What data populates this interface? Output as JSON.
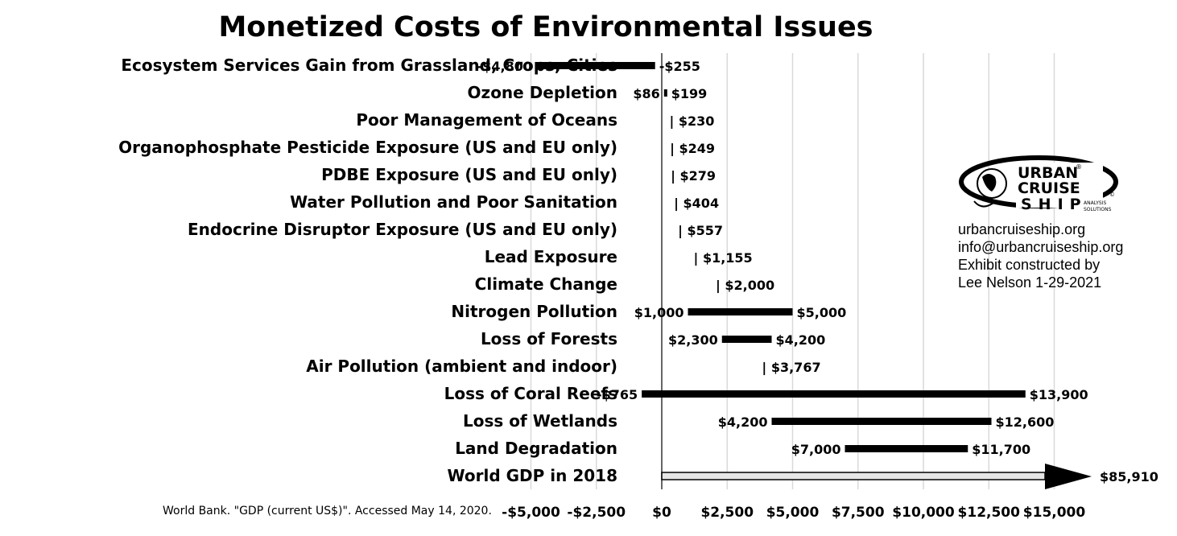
{
  "chart_data": {
    "type": "bar",
    "title": "Monetized Costs of Environmental Issues",
    "xlabel": "",
    "ylabel": "",
    "xlim": [
      -6000,
      15900
    ],
    "grid": true,
    "x_ticks": [
      -5000,
      -2500,
      0,
      2500,
      5000,
      7500,
      10000,
      12500,
      15000
    ],
    "x_tick_labels": [
      "-$5,000",
      "-$2,500",
      "$0",
      "$2,500",
      "$5,000",
      "$7,500",
      "$10,000",
      "$12,500",
      "$15,000"
    ],
    "categories": [
      "Ecosystem Services Gain from Grassland, Crops, Cities",
      "Ozone Depletion",
      "Poor Management of Oceans",
      "Organophosphate Pesticide Exposure (US and EU only)",
      "PDBE Exposure (US and EU only)",
      "Water Pollution and Poor Sanitation",
      "Endocrine Disruptor Exposure (US and EU only)",
      "Lead Exposure",
      "Climate Change",
      "Nitrogen Pollution",
      "Loss of Forests",
      "Air Pollution (ambient and indoor)",
      "Loss of Coral Reefs",
      "Loss of Wetlands",
      "Land Degradation",
      "World GDP in 2018"
    ],
    "ranges": [
      {
        "low": -4800,
        "high": -255,
        "low_label": "-$4,800",
        "high_label": "-$255"
      },
      {
        "low": 86,
        "high": 199,
        "low_label": "$86",
        "high_label": "$199"
      },
      {
        "low": 230,
        "high": 230,
        "low_label": "",
        "high_label": "| $230"
      },
      {
        "low": 249,
        "high": 249,
        "low_label": "",
        "high_label": "| $249"
      },
      {
        "low": 279,
        "high": 279,
        "low_label": "",
        "high_label": "| $279"
      },
      {
        "low": 404,
        "high": 404,
        "low_label": "",
        "high_label": "| $404"
      },
      {
        "low": 557,
        "high": 557,
        "low_label": "",
        "high_label": "| $557"
      },
      {
        "low": 1155,
        "high": 1155,
        "low_label": "",
        "high_label": "| $1,155"
      },
      {
        "low": 2000,
        "high": 2000,
        "low_label": "",
        "high_label": "| $2,000"
      },
      {
        "low": 1000,
        "high": 5000,
        "low_label": "$1,000",
        "high_label": "$5,000"
      },
      {
        "low": 2300,
        "high": 4200,
        "low_label": "$2,300",
        "high_label": "$4,200"
      },
      {
        "low": 3767,
        "high": 3767,
        "low_label": "",
        "high_label": "| $3,767"
      },
      {
        "low": -765,
        "high": 13900,
        "low_label": "-$765",
        "high_label": "$13,900"
      },
      {
        "low": 4200,
        "high": 12600,
        "low_label": "$4,200",
        "high_label": "$12,600"
      },
      {
        "low": 7000,
        "high": 11700,
        "low_label": "$7,000",
        "high_label": "$11,700"
      },
      {
        "low": 0,
        "high": 85910,
        "low_label": "",
        "high_label": "$85,910",
        "arrow": true
      }
    ],
    "colors": {
      "bar": "#000000",
      "gdp_bar_fill": "#e6e6e6",
      "grid": "#d9d9d9"
    }
  },
  "source_note": "World Bank. \"GDP (current US$)\". Accessed May 14, 2020.",
  "branding": {
    "logo_line1": "URBAN",
    "logo_line2": "CRUISE",
    "logo_line3": "SHIP",
    "logo_tagline_1": "ANALYSIS",
    "logo_tagline_2": "SOLUTIONS",
    "logo_registered": "®",
    "logo_copyright": "©",
    "website": "urbancruiseship.org",
    "email": "info@urbancruiseship.org",
    "credit_1": "Exhibit constructed by",
    "credit_2": "Lee Nelson 1-29-2021"
  }
}
